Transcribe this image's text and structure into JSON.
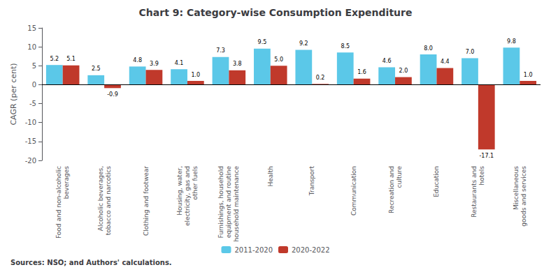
{
  "chart_data": {
    "type": "bar",
    "title": "Chart 9: Category-wise Consumption Expenditure",
    "categories": [
      "Food and non-alcoholic\nbeverages",
      "Alcoholic beverages,\ntobacco and narcotics",
      "Clothing and footwear",
      "Housing, water,\nelectricity, gas and\nother fuels",
      "Furnishings, household\nequipment and routine\nhousehold maintenance",
      "Health",
      "Transport",
      "Communication",
      "Recreation and\nculture",
      "Education",
      "Restaurants and\nhotels",
      "Miscellaneous\ngoods and services"
    ],
    "series": [
      {
        "name": "2011-2020",
        "color": "#5bc8e8",
        "values": [
          5.2,
          2.5,
          4.8,
          4.1,
          7.3,
          9.5,
          9.2,
          8.5,
          4.6,
          8.0,
          7.0,
          9.8
        ],
        "value_labels": [
          "5.2",
          "2.5",
          "4.8",
          "4.1",
          "7.3",
          "9.5",
          "9.2",
          "8.5",
          "4.6",
          "8.0",
          "7.0",
          "9.8"
        ]
      },
      {
        "name": "2020-2022",
        "color": "#c0392b",
        "values": [
          5.1,
          -0.9,
          3.9,
          1.0,
          3.8,
          5.0,
          0.2,
          1.6,
          2.0,
          4.4,
          -17.1,
          1.0
        ],
        "value_labels": [
          "5.1",
          "-0.9",
          "3.9",
          "1.0",
          "3.8",
          "5.0",
          "0.2",
          "1.6",
          "2.0",
          "4.4",
          "-17.1",
          "1.0"
        ]
      }
    ],
    "ylabel": "CAGR (per cent)",
    "ylim": [
      -20,
      15
    ],
    "yticks": [
      -20,
      -15,
      -10,
      -5,
      0,
      5,
      10,
      15
    ],
    "grid": false,
    "legend": "bottom",
    "data_labels": true,
    "annotations": [
      "Sources:",
      "NSO; and Authors' calculations."
    ]
  }
}
